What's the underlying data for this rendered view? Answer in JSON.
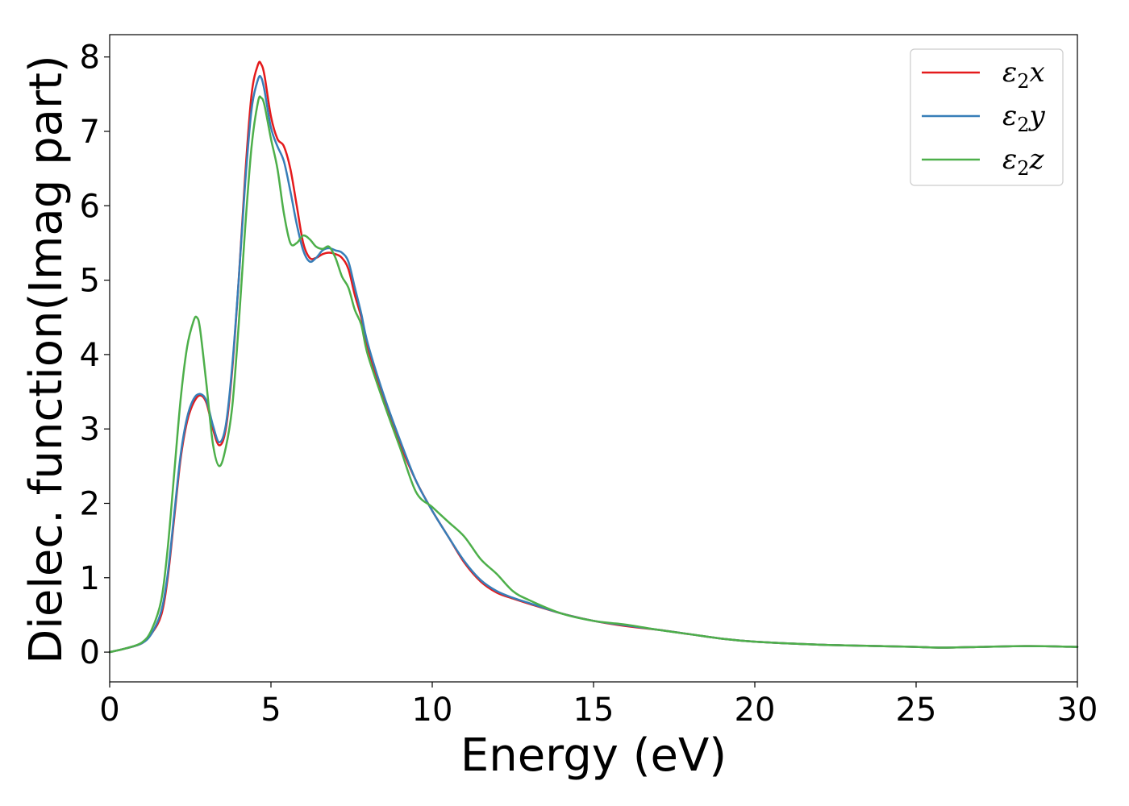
{
  "chart_data": {
    "type": "line",
    "title": "",
    "xlabel": "Energy (eV)",
    "ylabel": "Dielec. function(Imag part)",
    "xlim": [
      0,
      30
    ],
    "ylim": [
      -0.4,
      8.3
    ],
    "xticks": [
      0,
      5,
      10,
      15,
      20,
      25,
      30
    ],
    "yticks": [
      0,
      1,
      2,
      3,
      4,
      5,
      6,
      7,
      8
    ],
    "grid": false,
    "legend_position": "top-right",
    "series": [
      {
        "name": "ε₂x",
        "legend_base": "ε",
        "legend_sub": "2",
        "legend_var": "x",
        "color": "#e41a1c",
        "x": [
          0,
          0.5,
          1.0,
          1.3,
          1.6,
          1.8,
          2.0,
          2.2,
          2.4,
          2.6,
          2.8,
          3.0,
          3.2,
          3.4,
          3.6,
          3.8,
          4.0,
          4.2,
          4.4,
          4.6,
          4.7,
          4.8,
          5.0,
          5.2,
          5.4,
          5.6,
          5.8,
          6.0,
          6.2,
          6.4,
          6.6,
          6.8,
          7.0,
          7.2,
          7.4,
          7.6,
          7.8,
          8.0,
          8.5,
          9.0,
          9.5,
          10.0,
          10.5,
          11.0,
          11.5,
          12.0,
          12.5,
          13.0,
          14.0,
          15.0,
          16.0,
          17.0,
          18.0,
          19.0,
          20.0,
          22.0,
          24.0,
          25.0,
          25.8,
          27.0,
          28.0,
          29.0,
          30.0
        ],
        "y": [
          0.0,
          0.05,
          0.12,
          0.25,
          0.5,
          1.0,
          1.8,
          2.6,
          3.1,
          3.35,
          3.45,
          3.35,
          3.0,
          2.78,
          3.0,
          3.8,
          5.0,
          6.4,
          7.5,
          7.9,
          7.9,
          7.75,
          7.2,
          6.9,
          6.8,
          6.5,
          6.0,
          5.5,
          5.3,
          5.3,
          5.35,
          5.37,
          5.35,
          5.3,
          5.15,
          4.8,
          4.5,
          4.1,
          3.4,
          2.8,
          2.3,
          1.9,
          1.55,
          1.2,
          0.95,
          0.8,
          0.72,
          0.65,
          0.52,
          0.42,
          0.35,
          0.3,
          0.24,
          0.18,
          0.14,
          0.1,
          0.08,
          0.07,
          0.06,
          0.07,
          0.08,
          0.08,
          0.07
        ]
      },
      {
        "name": "ε₂y",
        "legend_base": "ε",
        "legend_sub": "2",
        "legend_var": "y",
        "color": "#377eb8",
        "x": [
          0,
          0.5,
          1.0,
          1.3,
          1.6,
          1.8,
          2.0,
          2.2,
          2.4,
          2.6,
          2.8,
          3.0,
          3.2,
          3.4,
          3.6,
          3.8,
          4.0,
          4.2,
          4.4,
          4.6,
          4.7,
          4.8,
          5.0,
          5.2,
          5.4,
          5.6,
          5.8,
          6.0,
          6.2,
          6.4,
          6.6,
          6.8,
          7.0,
          7.2,
          7.4,
          7.6,
          7.8,
          8.0,
          8.5,
          9.0,
          9.5,
          10.0,
          10.5,
          11.0,
          11.5,
          12.0,
          12.5,
          13.0,
          14.0,
          15.0,
          16.0,
          17.0,
          18.0,
          19.0,
          20.0,
          22.0,
          24.0,
          25.0,
          25.8,
          27.0,
          28.0,
          29.0,
          30.0
        ],
        "y": [
          0.0,
          0.05,
          0.12,
          0.25,
          0.55,
          1.05,
          1.85,
          2.65,
          3.15,
          3.4,
          3.47,
          3.38,
          3.05,
          2.82,
          3.05,
          3.85,
          5.0,
          6.3,
          7.3,
          7.7,
          7.72,
          7.55,
          7.05,
          6.8,
          6.6,
          6.2,
          5.75,
          5.4,
          5.25,
          5.3,
          5.4,
          5.43,
          5.4,
          5.37,
          5.25,
          4.9,
          4.55,
          4.15,
          3.45,
          2.85,
          2.3,
          1.9,
          1.55,
          1.22,
          0.97,
          0.82,
          0.73,
          0.66,
          0.52,
          0.42,
          0.36,
          0.3,
          0.24,
          0.18,
          0.14,
          0.1,
          0.08,
          0.07,
          0.06,
          0.07,
          0.08,
          0.08,
          0.07
        ]
      },
      {
        "name": "ε₂z",
        "legend_base": "ε",
        "legend_sub": "2",
        "legend_var": "z",
        "color": "#4daf4a",
        "x": [
          0,
          0.5,
          1.0,
          1.3,
          1.6,
          1.8,
          2.0,
          2.2,
          2.4,
          2.6,
          2.7,
          2.8,
          3.0,
          3.2,
          3.4,
          3.6,
          3.8,
          4.0,
          4.2,
          4.4,
          4.6,
          4.7,
          4.8,
          5.0,
          5.2,
          5.4,
          5.6,
          5.8,
          6.0,
          6.2,
          6.4,
          6.6,
          6.8,
          7.0,
          7.2,
          7.4,
          7.6,
          7.8,
          8.0,
          8.5,
          9.0,
          9.5,
          10.0,
          10.5,
          11.0,
          11.5,
          12.0,
          12.5,
          13.0,
          14.0,
          15.0,
          16.0,
          17.0,
          18.0,
          19.0,
          20.0,
          22.0,
          24.0,
          25.0,
          25.8,
          27.0,
          28.0,
          29.0,
          30.0
        ],
        "y": [
          0.0,
          0.05,
          0.13,
          0.3,
          0.7,
          1.4,
          2.4,
          3.4,
          4.1,
          4.45,
          4.5,
          4.35,
          3.6,
          2.8,
          2.5,
          2.75,
          3.3,
          4.4,
          5.7,
          6.8,
          7.4,
          7.45,
          7.35,
          6.9,
          6.5,
          5.9,
          5.5,
          5.5,
          5.6,
          5.55,
          5.45,
          5.42,
          5.45,
          5.3,
          5.05,
          4.9,
          4.6,
          4.4,
          4.0,
          3.35,
          2.75,
          2.15,
          1.95,
          1.75,
          1.55,
          1.25,
          1.05,
          0.82,
          0.7,
          0.52,
          0.42,
          0.37,
          0.3,
          0.24,
          0.18,
          0.14,
          0.1,
          0.08,
          0.07,
          0.06,
          0.07,
          0.08,
          0.08,
          0.07
        ]
      }
    ]
  }
}
